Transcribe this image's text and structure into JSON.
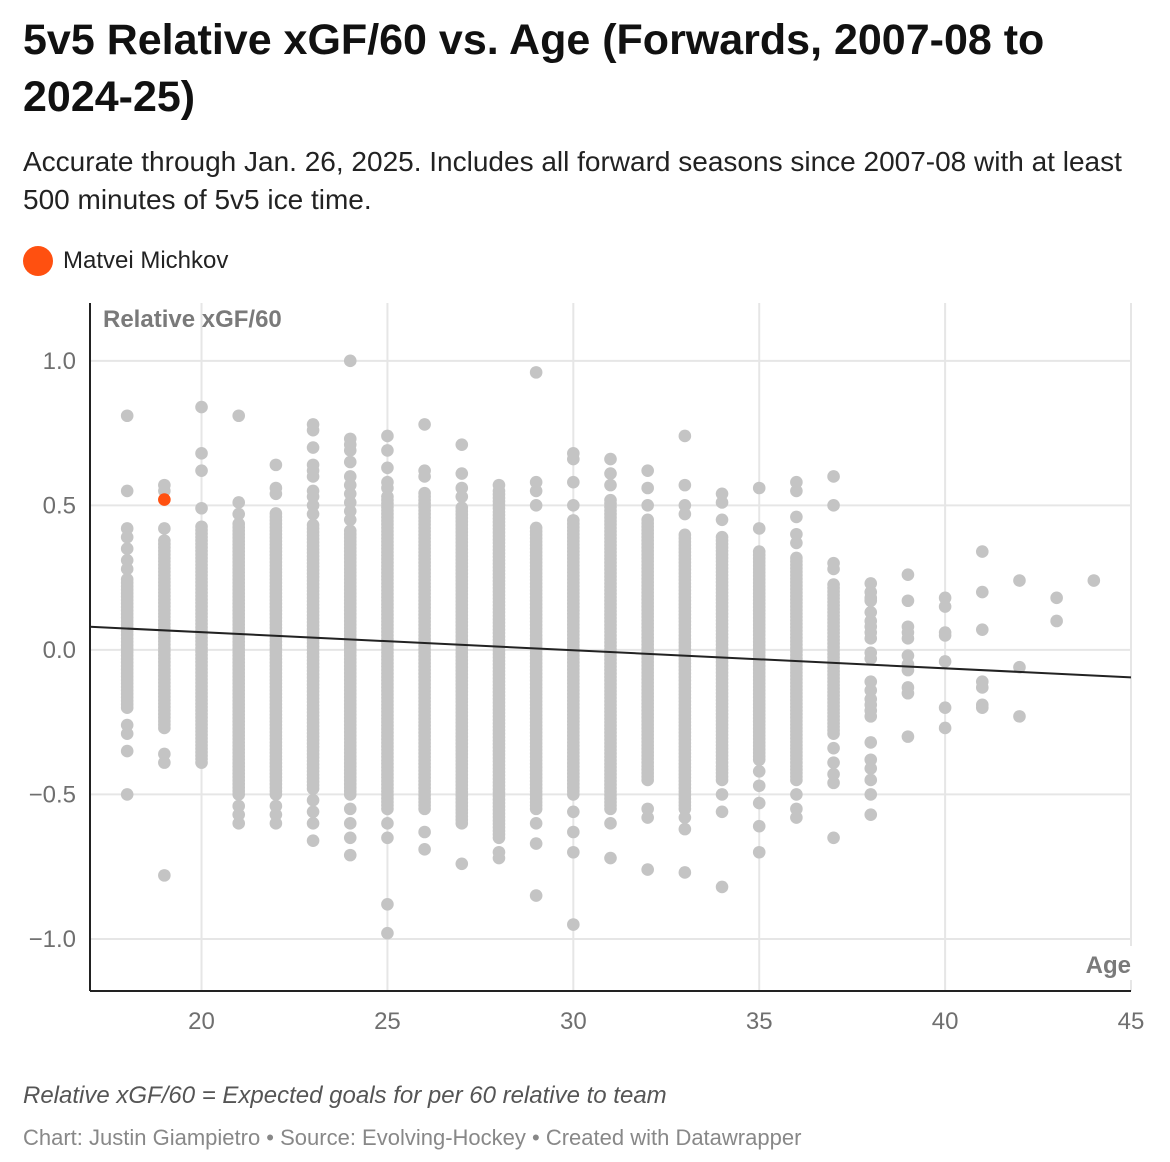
{
  "title": "5v5 Relative xGF/60 vs. Age (Forwards, 2007-08 to 2024-25)",
  "subtitle": "Accurate through Jan. 26, 2025. Includes all forward seasons since 2007-08 with at least 500 minutes of 5v5 ice time.",
  "legend": {
    "label": "Matvei Michkov",
    "color": "#ff5010"
  },
  "note": "Relative xGF/60 = Expected goals for per 60 relative to team",
  "credits": "Chart: Justin Giampietro • Source: Evolving-Hockey • Created with Datawrapper",
  "chart_data": {
    "type": "scatter",
    "xlabel": "Age",
    "ylabel": "Relative xGF/60",
    "xlim": [
      17,
      45
    ],
    "ylim": [
      -1.18,
      1.2
    ],
    "x_ticks": [
      20,
      25,
      30,
      35,
      40,
      45
    ],
    "y_ticks": [
      1.0,
      0.5,
      0.0,
      -0.5,
      -1.0
    ],
    "y_tick_labels": [
      "1.0",
      "0.5",
      "0.0",
      "−0.5",
      "−1.0"
    ],
    "grid": true,
    "point_color": "#c4c4c4",
    "highlight": {
      "name": "Matvei Michkov",
      "x": 19,
      "y": 0.52,
      "color": "#ff5010"
    },
    "trend_line": {
      "x": [
        17,
        45
      ],
      "y": [
        0.08,
        -0.095
      ],
      "color": "#222222"
    },
    "columns": [
      {
        "age": 18,
        "dense": [
          -0.2,
          0.25
        ],
        "points": [
          0.81,
          0.55,
          0.42,
          0.39,
          0.35,
          0.31,
          0.28,
          -0.26,
          -0.29,
          -0.35,
          -0.5
        ]
      },
      {
        "age": 19,
        "dense": [
          -0.27,
          0.38
        ],
        "points": [
          0.57,
          0.55,
          0.42,
          -0.36,
          -0.39,
          -0.78
        ]
      },
      {
        "age": 20,
        "dense": [
          -0.39,
          0.43
        ],
        "points": [
          0.84,
          0.68,
          0.62,
          0.49
        ]
      },
      {
        "age": 21,
        "dense": [
          -0.5,
          0.44
        ],
        "points": [
          0.81,
          0.51,
          0.47,
          -0.54,
          -0.57,
          -0.6
        ]
      },
      {
        "age": 22,
        "dense": [
          -0.5,
          0.48
        ],
        "points": [
          0.64,
          0.56,
          0.54,
          -0.54,
          -0.57,
          -0.6
        ]
      },
      {
        "age": 23,
        "dense": [
          -0.48,
          0.44
        ],
        "points": [
          0.78,
          0.76,
          0.7,
          0.64,
          0.62,
          0.6,
          0.55,
          0.53,
          0.5,
          0.47,
          -0.52,
          -0.56,
          -0.6,
          -0.66
        ]
      },
      {
        "age": 24,
        "dense": [
          -0.5,
          0.42
        ],
        "points": [
          1.0,
          0.73,
          0.71,
          0.69,
          0.65,
          0.6,
          0.57,
          0.54,
          0.51,
          0.48,
          0.45,
          -0.55,
          -0.6,
          -0.65,
          -0.71
        ]
      },
      {
        "age": 25,
        "dense": [
          -0.55,
          0.53
        ],
        "points": [
          0.74,
          0.69,
          0.63,
          0.58,
          0.56,
          -0.6,
          -0.65,
          -0.88,
          -0.98
        ]
      },
      {
        "age": 26,
        "dense": [
          -0.55,
          0.55
        ],
        "points": [
          0.78,
          0.62,
          0.6,
          -0.63,
          -0.69
        ]
      },
      {
        "age": 27,
        "dense": [
          -0.6,
          0.5
        ],
        "points": [
          0.71,
          0.61,
          0.56,
          0.53,
          -0.74
        ]
      },
      {
        "age": 28,
        "dense": [
          -0.65,
          0.55
        ],
        "points": [
          0.57,
          -0.7,
          -0.72
        ]
      },
      {
        "age": 29,
        "dense": [
          -0.55,
          0.43
        ],
        "points": [
          0.96,
          0.58,
          0.55,
          0.5,
          -0.6,
          -0.67,
          -0.85
        ]
      },
      {
        "age": 30,
        "dense": [
          -0.5,
          0.45
        ],
        "points": [
          0.68,
          0.66,
          0.58,
          0.5,
          -0.56,
          -0.63,
          -0.7,
          -0.95
        ]
      },
      {
        "age": 31,
        "dense": [
          -0.55,
          0.52
        ],
        "points": [
          0.66,
          0.61,
          0.57,
          -0.6,
          -0.72
        ]
      },
      {
        "age": 32,
        "dense": [
          -0.45,
          0.45
        ],
        "points": [
          0.62,
          0.56,
          0.5,
          -0.55,
          -0.58,
          -0.76
        ]
      },
      {
        "age": 33,
        "dense": [
          -0.55,
          0.4
        ],
        "points": [
          0.74,
          0.57,
          0.5,
          0.47,
          -0.58,
          -0.62,
          -0.77
        ]
      },
      {
        "age": 34,
        "dense": [
          -0.45,
          0.4
        ],
        "points": [
          0.54,
          0.51,
          0.45,
          -0.5,
          -0.56,
          -0.82
        ]
      },
      {
        "age": 35,
        "dense": [
          -0.38,
          0.35
        ],
        "points": [
          0.56,
          0.42,
          -0.42,
          -0.47,
          -0.53,
          -0.61,
          -0.7
        ]
      },
      {
        "age": 36,
        "dense": [
          -0.45,
          0.32
        ],
        "points": [
          0.58,
          0.55,
          0.46,
          0.4,
          0.37,
          -0.5,
          -0.55,
          -0.58
        ]
      },
      {
        "age": 37,
        "dense": [
          -0.29,
          0.23
        ],
        "points": [
          0.6,
          0.5,
          0.3,
          0.28,
          -0.34,
          -0.39,
          -0.43,
          -0.46,
          -0.65
        ]
      },
      {
        "age": 38,
        "dense": null,
        "points": [
          0.23,
          0.2,
          0.18,
          0.17,
          0.13,
          0.1,
          0.08,
          0.06,
          0.04,
          -0.01,
          -0.03,
          -0.11,
          -0.14,
          -0.17,
          -0.19,
          -0.21,
          -0.23,
          -0.32,
          -0.38,
          -0.41,
          -0.45,
          -0.5,
          -0.57
        ]
      },
      {
        "age": 39,
        "dense": null,
        "points": [
          0.26,
          0.17,
          0.08,
          0.06,
          0.04,
          -0.02,
          -0.05,
          -0.07,
          -0.13,
          -0.15,
          -0.3
        ]
      },
      {
        "age": 40,
        "dense": null,
        "points": [
          0.18,
          0.15,
          0.06,
          0.05,
          -0.04,
          -0.2,
          -0.27
        ]
      },
      {
        "age": 41,
        "dense": null,
        "points": [
          0.34,
          0.2,
          0.07,
          -0.11,
          -0.13,
          -0.19,
          -0.2
        ]
      },
      {
        "age": 42,
        "dense": null,
        "points": [
          0.24,
          -0.06,
          -0.23
        ]
      },
      {
        "age": 43,
        "dense": null,
        "points": [
          0.18,
          0.1
        ]
      },
      {
        "age": 44,
        "dense": null,
        "points": [
          0.24
        ]
      }
    ]
  }
}
